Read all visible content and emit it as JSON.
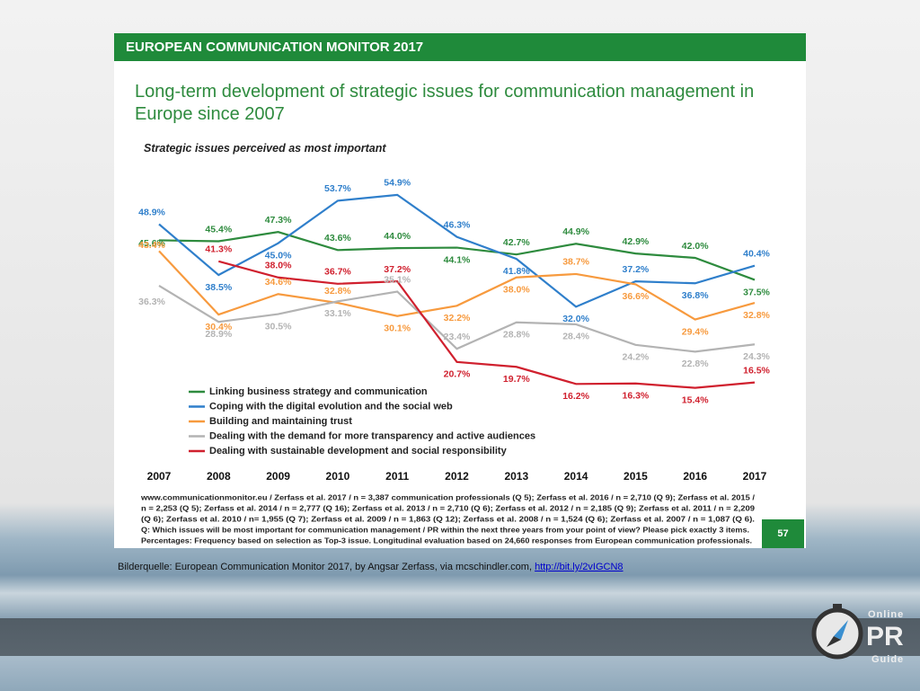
{
  "header": {
    "title": "EUROPEAN COMMUNICATION MONITOR 2017"
  },
  "chart_data": {
    "type": "line",
    "title": "Long-term development of strategic issues for communication management in Europe since 2007",
    "subtitle": "Strategic issues perceived as most important",
    "categories": [
      "2007",
      "2008",
      "2009",
      "2010",
      "2011",
      "2012",
      "2013",
      "2014",
      "2015",
      "2016",
      "2017"
    ],
    "ylim": [
      10,
      58
    ],
    "series": [
      {
        "name": "Linking business strategy and communication",
        "color": "#2e8b3e",
        "values": [
          45.6,
          45.4,
          47.3,
          43.6,
          44.0,
          44.1,
          42.7,
          44.9,
          42.9,
          42.0,
          37.5
        ],
        "value_labels": [
          "45.6%",
          "45.4%",
          "47.3%",
          "43.6%",
          "44.0%",
          "44.1%",
          "42.7%",
          "44.9%",
          "42.9%",
          "42.0%",
          "37.5%"
        ]
      },
      {
        "name": "Coping with the digital evolution and the social web",
        "color": "#2f7fcb",
        "values": [
          48.9,
          38.5,
          45.0,
          53.7,
          54.9,
          46.3,
          41.8,
          32.0,
          37.2,
          36.8,
          40.4
        ],
        "value_labels": [
          "48.9%",
          "38.5%",
          "45.0%",
          "53.7%",
          "54.9%",
          "46.3%",
          "41.8%",
          "32.0%",
          "37.2%",
          "36.8%",
          "40.4%"
        ]
      },
      {
        "name": "Building and maintaining trust",
        "color": "#f79a3e",
        "values": [
          43.4,
          30.4,
          34.6,
          32.8,
          30.1,
          32.2,
          38.0,
          38.7,
          36.6,
          29.4,
          32.8
        ],
        "value_labels": [
          "43.4%",
          "30.4%",
          "34.6%",
          "32.8%",
          "30.1%",
          "32.2%",
          "38.0%",
          "38.7%",
          "36.6%",
          "29.4%",
          "32.8%"
        ]
      },
      {
        "name": "Dealing with the demand for more transparency and active audiences",
        "color": "#b3b3b3",
        "values": [
          36.3,
          28.9,
          30.5,
          33.1,
          35.1,
          23.4,
          28.8,
          28.4,
          24.2,
          22.8,
          24.3
        ],
        "value_labels": [
          "36.3%",
          "28.9%",
          "30.5%",
          "33.1%",
          "35.1%",
          "23.4%",
          "28.8%",
          "28.4%",
          "24.2%",
          "22.8%",
          "24.3%"
        ]
      },
      {
        "name": "Dealing with sustainable development and social responsibility",
        "color": "#d0202e",
        "values": [
          null,
          41.3,
          38.0,
          36.7,
          37.2,
          20.7,
          19.7,
          16.2,
          16.3,
          15.4,
          16.5
        ],
        "value_labels": [
          null,
          "41.3%",
          "38.0%",
          "36.7%",
          "37.2%",
          "20.7%",
          "19.7%",
          "16.2%",
          "16.3%",
          "15.4%",
          "16.5%"
        ]
      }
    ]
  },
  "footer": [
    "www.communicationmonitor.eu / Zerfass et al. 2017 / n = 3,387 communication professionals (Q 5); Zerfass et al. 2016 / n = 2,710 (Q 9); Zerfass et al. 2015 /",
    "n = 2,253 (Q 5); Zerfass et al. 2014 / n = 2,777 (Q 16); Zerfass et al. 2013 / n = 2,710 (Q 6); Zerfass et al. 2012 / n = 2,185 (Q 9); Zerfass et al. 2011 / n = 2,209",
    "(Q 6); Zerfass et al. 2010 / n= 1,955 (Q 7); Zerfass et al. 2009 / n = 1,863 (Q 12); Zerfass et al. 2008 / n = 1,524 (Q 6);  Zerfass et al. 2007 / n = 1,087 (Q 6).",
    "Q: Which issues will be most important for communication management / PR within the next three years from your point of view? Please pick exactly 3 items.",
    "Percentages: Frequency based on selection as Top-3 issue. Longitudinal evaluation based on 24,660 responses from European communication professionals."
  ],
  "page_number": "57",
  "caption": {
    "text": "Bilderquelle: European Communication Monitor 2017, by Angsar Zerfass, via mcschindler.com,",
    "link": "http://bit.ly/2vIGCN8"
  },
  "logo": {
    "top": "Online",
    "middle": "PR",
    "bottom": "Guide"
  }
}
